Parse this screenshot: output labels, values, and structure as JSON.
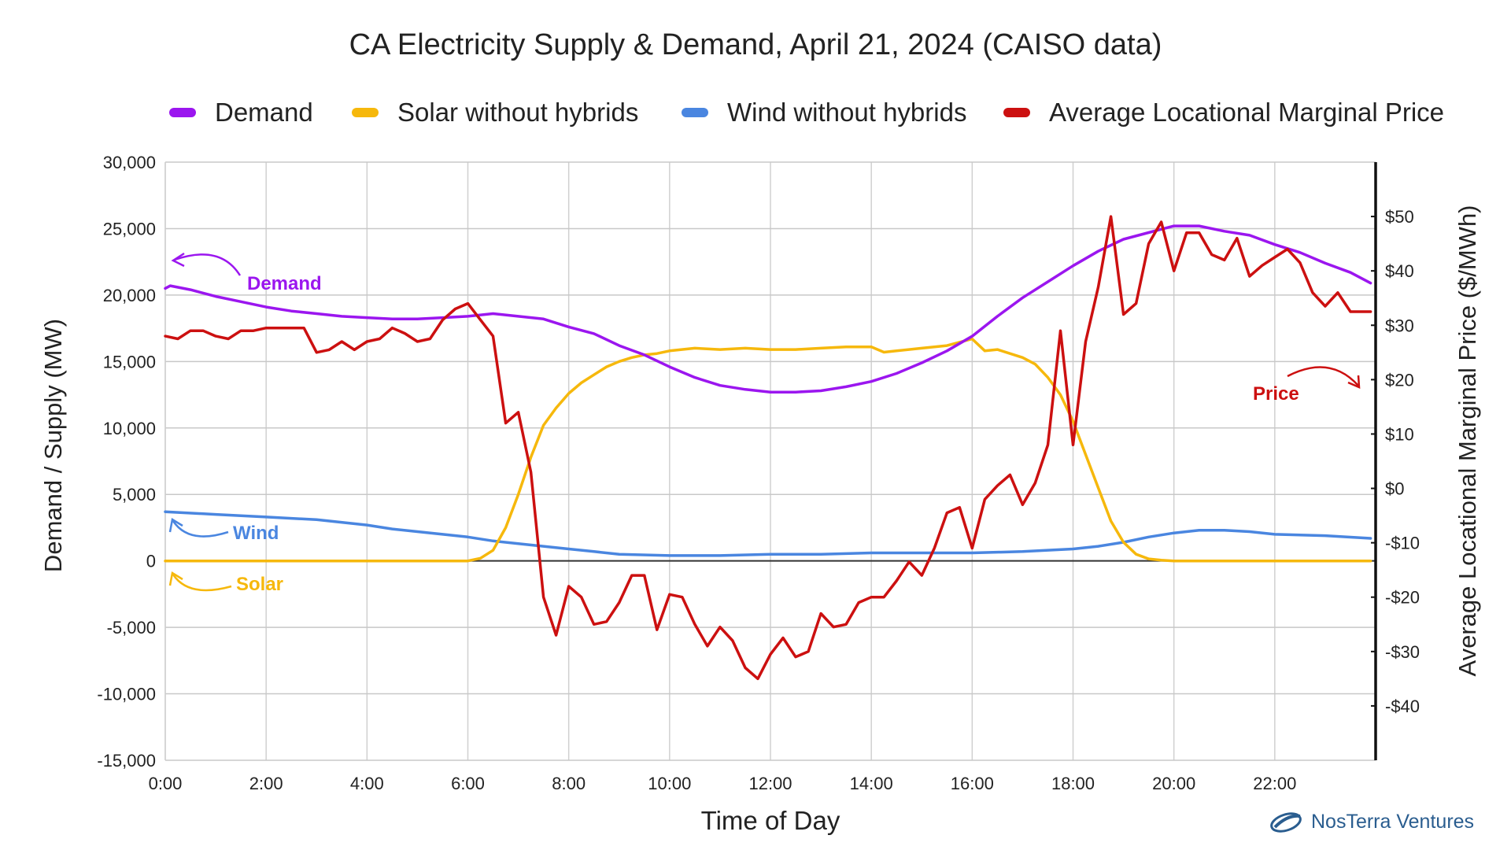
{
  "title": "CA Electricity Supply & Demand, April 21, 2024 (CAISO data)",
  "brand": "NosTerra Ventures",
  "legend": [
    {
      "label": "Demand",
      "color": "#9b16ef"
    },
    {
      "label": "Solar without hybrids",
      "color": "#f6b80c"
    },
    {
      "label": "Wind without hybrids",
      "color": "#4a86e0"
    },
    {
      "label": "Average Locational Marginal Price",
      "color": "#cc1010"
    }
  ],
  "annotations": {
    "demand": "Demand",
    "wind": "Wind",
    "solar": "Solar",
    "price": "Price"
  },
  "chart_data": {
    "type": "line",
    "title": "CA Electricity Supply & Demand, April 21, 2024 (CAISO data)",
    "xlabel": "Time of Day",
    "ylabel": "Demand / Supply (MW)",
    "ylabel_right": "Average Locational Marginal Price ($/MWh)",
    "xlim": [
      0,
      24
    ],
    "ylim": [
      -15000,
      30000
    ],
    "ylim_right": [
      -50,
      60
    ],
    "x_ticks": [
      {
        "v": 0,
        "label": "0:00"
      },
      {
        "v": 2,
        "label": "2:00"
      },
      {
        "v": 4,
        "label": "4:00"
      },
      {
        "v": 6,
        "label": "6:00"
      },
      {
        "v": 8,
        "label": "8:00"
      },
      {
        "v": 10,
        "label": "10:00"
      },
      {
        "v": 12,
        "label": "12:00"
      },
      {
        "v": 14,
        "label": "14:00"
      },
      {
        "v": 16,
        "label": "16:00"
      },
      {
        "v": 18,
        "label": "18:00"
      },
      {
        "v": 20,
        "label": "20:00"
      },
      {
        "v": 22,
        "label": "22:00"
      }
    ],
    "y_ticks": [
      {
        "v": 30000,
        "label": "30,000"
      },
      {
        "v": 25000,
        "label": "25,000"
      },
      {
        "v": 20000,
        "label": "20,000"
      },
      {
        "v": 15000,
        "label": "15,000"
      },
      {
        "v": 10000,
        "label": "10,000"
      },
      {
        "v": 5000,
        "label": "5,000"
      },
      {
        "v": 0,
        "label": "0"
      },
      {
        "v": -5000,
        "label": "-5,000"
      },
      {
        "v": -10000,
        "label": "-10,000"
      },
      {
        "v": -15000,
        "label": "-15,000"
      }
    ],
    "y_right_ticks": [
      {
        "v": 50,
        "label": "$50"
      },
      {
        "v": 40,
        "label": "$40"
      },
      {
        "v": 30,
        "label": "$30"
      },
      {
        "v": 20,
        "label": "$20"
      },
      {
        "v": 10,
        "label": "$10"
      },
      {
        "v": 0,
        "label": "$0"
      },
      {
        "v": -10,
        "label": "-$10"
      },
      {
        "v": -20,
        "label": "-$20"
      },
      {
        "v": -30,
        "label": "-$30"
      },
      {
        "v": -40,
        "label": "-$40"
      }
    ],
    "grid": true,
    "legend_position": "top",
    "series": [
      {
        "name": "Demand",
        "axis": "left",
        "color": "#9b16ef",
        "x": [
          0,
          0.1,
          0.5,
          1,
          1.5,
          2,
          2.5,
          3,
          3.5,
          4,
          4.5,
          5,
          5.5,
          6,
          6.5,
          7,
          7.5,
          8,
          8.5,
          9,
          9.5,
          10,
          10.5,
          11,
          11.5,
          12,
          12.5,
          13,
          13.5,
          14,
          14.5,
          15,
          15.5,
          16,
          16.5,
          17,
          17.5,
          18,
          18.5,
          19,
          19.5,
          20,
          20.5,
          21,
          21.5,
          22,
          22.5,
          23,
          23.5,
          23.9
        ],
        "y": [
          20500,
          20700,
          20400,
          19900,
          19500,
          19100,
          18800,
          18600,
          18400,
          18300,
          18200,
          18200,
          18300,
          18400,
          18600,
          18400,
          18200,
          17600,
          17100,
          16200,
          15500,
          14600,
          13800,
          13200,
          12900,
          12700,
          12700,
          12800,
          13100,
          13500,
          14100,
          14900,
          15800,
          16900,
          18400,
          19800,
          21000,
          22200,
          23300,
          24200,
          24700,
          25200,
          25200,
          24800,
          24500,
          23800,
          23200,
          22400,
          21700,
          20900
        ]
      },
      {
        "name": "Solar without hybrids",
        "axis": "left",
        "color": "#f6b80c",
        "x": [
          0,
          6,
          6.25,
          6.5,
          6.75,
          7,
          7.25,
          7.5,
          7.75,
          8,
          8.25,
          8.5,
          8.75,
          9,
          9.25,
          9.5,
          9.75,
          10,
          10.5,
          11,
          11.5,
          12,
          12.5,
          13,
          13.5,
          14,
          14.25,
          14.5,
          15,
          15.5,
          16,
          16.25,
          16.5,
          17,
          17.25,
          17.5,
          17.75,
          18,
          18.25,
          18.5,
          18.75,
          19,
          19.25,
          19.5,
          19.75,
          20,
          20.5,
          21,
          22,
          23,
          23.9
        ],
        "y": [
          0,
          0,
          200,
          800,
          2500,
          5000,
          7800,
          10200,
          11500,
          12600,
          13400,
          14000,
          14600,
          15000,
          15300,
          15500,
          15600,
          15800,
          16000,
          15900,
          16000,
          15900,
          15900,
          16000,
          16100,
          16100,
          15700,
          15800,
          16000,
          16200,
          16700,
          15800,
          15900,
          15300,
          14800,
          13800,
          12500,
          10500,
          8000,
          5500,
          3000,
          1400,
          500,
          150,
          50,
          0,
          0,
          0,
          0,
          0,
          0
        ]
      },
      {
        "name": "Wind without hybrids",
        "axis": "left",
        "color": "#4a86e0",
        "x": [
          0,
          1,
          2,
          3,
          4,
          4.5,
          5,
          5.5,
          6,
          6.5,
          7,
          7.5,
          8,
          8.5,
          9,
          10,
          11,
          12,
          13,
          14,
          15,
          16,
          17,
          18,
          18.5,
          19,
          19.5,
          20,
          20.5,
          21,
          21.5,
          22,
          23,
          23.9
        ],
        "y": [
          3700,
          3500,
          3300,
          3100,
          2700,
          2400,
          2200,
          2000,
          1800,
          1500,
          1300,
          1100,
          900,
          700,
          500,
          400,
          400,
          500,
          500,
          600,
          600,
          600,
          700,
          900,
          1100,
          1400,
          1800,
          2100,
          2300,
          2300,
          2200,
          2000,
          1900,
          1700
        ]
      },
      {
        "name": "Average Locational Marginal Price",
        "axis": "right",
        "color": "#cc1010",
        "x": [
          0,
          0.25,
          0.5,
          0.75,
          1,
          1.25,
          1.5,
          1.75,
          2,
          2.25,
          2.5,
          2.75,
          3,
          3.25,
          3.5,
          3.75,
          4,
          4.25,
          4.5,
          4.75,
          5,
          5.25,
          5.5,
          5.75,
          6,
          6.25,
          6.5,
          6.75,
          7,
          7.25,
          7.5,
          7.75,
          8,
          8.25,
          8.5,
          8.75,
          9,
          9.25,
          9.5,
          9.75,
          10,
          10.25,
          10.5,
          10.75,
          11,
          11.25,
          11.5,
          11.75,
          12,
          12.25,
          12.5,
          12.75,
          13,
          13.25,
          13.5,
          13.75,
          14,
          14.25,
          14.5,
          14.75,
          15,
          15.25,
          15.5,
          15.75,
          16,
          16.25,
          16.5,
          16.75,
          17,
          17.25,
          17.5,
          17.75,
          18,
          18.25,
          18.5,
          18.75,
          19,
          19.25,
          19.5,
          19.75,
          20,
          20.25,
          20.5,
          20.75,
          21,
          21.25,
          21.5,
          21.75,
          22,
          22.25,
          22.5,
          22.75,
          23,
          23.25,
          23.5,
          23.75,
          23.9
        ],
        "y": [
          28,
          27.5,
          29,
          29,
          28,
          27.5,
          29,
          29,
          29.5,
          29.5,
          29.5,
          29.5,
          25,
          25.5,
          27,
          25.5,
          27,
          27.5,
          29.5,
          28.5,
          27,
          27.5,
          31,
          33,
          34,
          31,
          28,
          12,
          14,
          3,
          -20,
          -27,
          -18,
          -20,
          -25,
          -24.5,
          -21,
          -16,
          -16,
          -26,
          -19.5,
          -20,
          -25,
          -29,
          -25.5,
          -28,
          -33,
          -35,
          -30.5,
          -27.5,
          -31,
          -30,
          -23,
          -25.5,
          -25,
          -21,
          -20,
          -20,
          -17,
          -13.5,
          -16,
          -11,
          -4.5,
          -3.5,
          -11,
          -2,
          0.5,
          2.5,
          -3,
          1,
          8,
          29,
          8,
          27,
          37,
          50,
          32,
          34,
          45,
          49,
          40,
          47,
          47,
          43,
          42,
          46,
          39,
          41,
          42.5,
          44,
          41.5,
          36,
          33.5,
          36,
          32.5,
          32.5,
          32.5
        ]
      }
    ]
  }
}
